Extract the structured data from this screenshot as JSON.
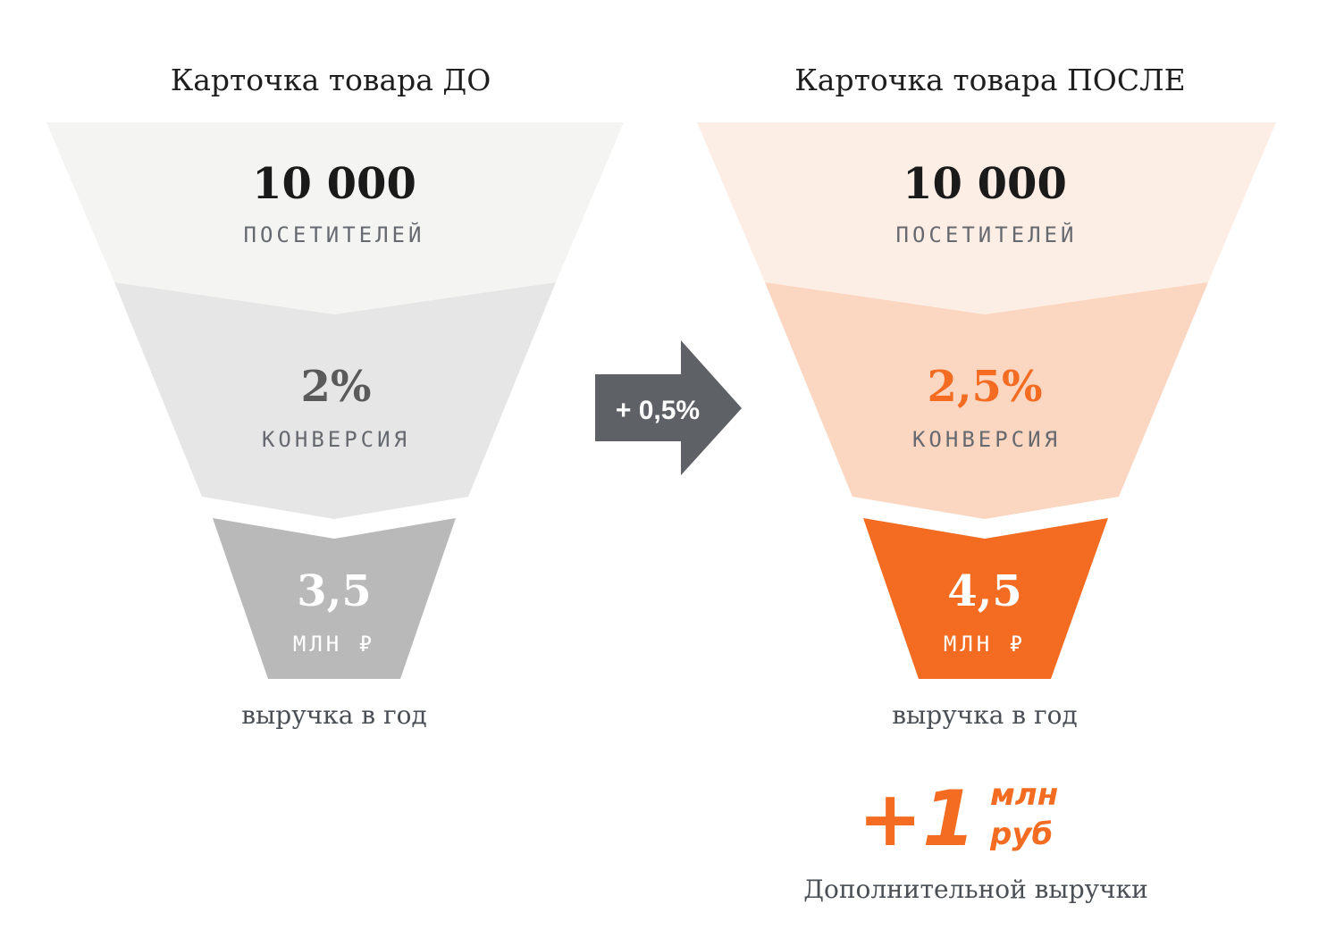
{
  "colors": {
    "before_top": "#f4f4f3",
    "before_mid": "#e6e6e6",
    "before_bottom": "#b9b9ba",
    "after_top": "#fdeee5",
    "after_mid": "#fbd6c1",
    "after_bottom": "#f36c22",
    "accent": "#f36c22",
    "arrow": "#5e6166",
    "dark_text": "#1a1a1a",
    "gray_number": "#5a5a5a",
    "caps_text": "#666a70",
    "white": "#ffffff"
  },
  "before": {
    "title": "Карточка товара ДО",
    "visitors_value": "10 000",
    "visitors_label": "ПОСЕТИТЕЛЕЙ",
    "conversion_value": "2%",
    "conversion_label": "КОНВЕРСИЯ",
    "revenue_value": "3,5",
    "revenue_unit": "МЛН ₽",
    "revenue_caption": "выручка в год"
  },
  "arrow": {
    "label": "+ 0,5%"
  },
  "after": {
    "title": "Карточка товара ПОСЛЕ",
    "visitors_value": "10 000",
    "visitors_label": "ПОСЕТИТЕЛЕЙ",
    "conversion_value": "2,5%",
    "conversion_label": "КОНВЕРСИЯ",
    "revenue_value": "4,5",
    "revenue_unit": "МЛН ₽",
    "revenue_caption": "выручка в год"
  },
  "bonus": {
    "value": "+1",
    "unit_line1": "млн",
    "unit_line2": "руб",
    "caption": "Дополнительной выручки"
  }
}
